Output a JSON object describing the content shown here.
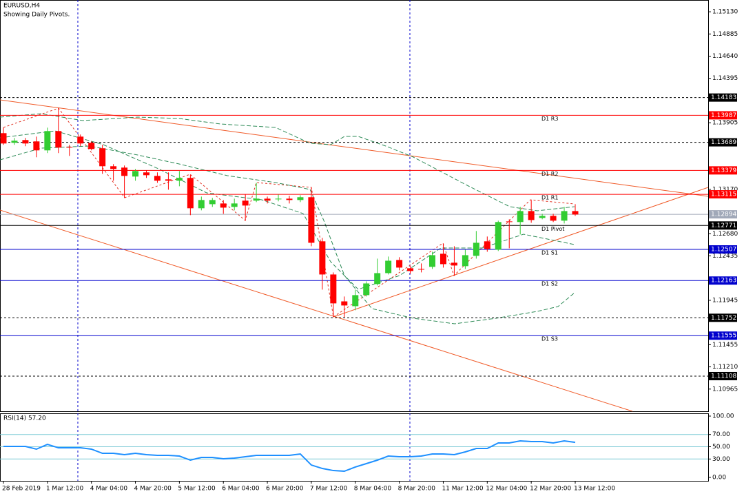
{
  "chart_data": [
    {
      "type": "candlestick",
      "title": "EURUSD,H4",
      "subtitle": "Showing Daily Pivots.",
      "categories": [
        "28 Feb 2019",
        null,
        null,
        null,
        "1 Mar 12:00",
        null,
        null,
        null,
        "4 Mar 04:00",
        null,
        null,
        null,
        "4 Mar 20:00",
        null,
        null,
        null,
        "5 Mar 12:00",
        null,
        null,
        null,
        "6 Mar 04:00",
        null,
        null,
        null,
        "6 Mar 20:00",
        null,
        null,
        null,
        "7 Mar 12:00",
        null,
        null,
        null,
        "8 Mar 04:00",
        null,
        null,
        null,
        "8 Mar 20:00",
        null,
        null,
        null,
        "11 Mar 12:00",
        null,
        null,
        null,
        "12 Mar 04:00",
        null,
        null,
        null,
        "12 Mar 20:00",
        null,
        null,
        null,
        "13 Mar 12:00"
      ],
      "open": [
        1.1379,
        1.13684,
        1.13714,
        1.13699,
        1.136,
        1.13813,
        1.13638,
        1.13752,
        1.13684,
        1.13623,
        1.13425,
        1.1341,
        1.13311,
        1.13357,
        1.13318,
        1.1328,
        1.13265,
        1.13296,
        1.12961,
        1.13006,
        1.13014,
        1.12976,
        1.13045,
        1.13045,
        1.13067,
        1.1306,
        1.13067,
        1.13052,
        1.13083,
        1.12596,
        1.1223,
        1.11933,
        1.1188,
        1.12002,
        1.12124,
        1.12245,
        1.1239,
        1.12299,
        1.12291,
        1.12314,
        1.12459,
        1.1236,
        1.12322,
        1.12436,
        1.12596,
        1.12504,
        1.12816,
        1.12809,
        1.1293,
        1.12854,
        1.12877,
        1.12824,
        1.1293
      ],
      "high": [
        1.13851,
        1.13737,
        1.13737,
        1.13752,
        1.13851,
        1.14064,
        1.13661,
        1.13775,
        1.13699,
        1.13661,
        1.13448,
        1.13433,
        1.13395,
        1.13379,
        1.13357,
        1.13357,
        1.13372,
        1.13334,
        1.1309,
        1.13075,
        1.13052,
        1.13067,
        1.13113,
        1.13242,
        1.1309,
        1.13113,
        1.13098,
        1.13105,
        1.13189,
        1.12634,
        1.12253,
        1.11987,
        1.12063,
        1.12154,
        1.12405,
        1.12428,
        1.12421,
        1.12322,
        1.12352,
        1.12481,
        1.12573,
        1.12542,
        1.12504,
        1.1271,
        1.12649,
        1.12824,
        1.12839,
        1.12976,
        1.13052,
        1.129,
        1.129,
        1.12976,
        1.13006
      ],
      "low": [
        1.13661,
        1.13661,
        1.13646,
        1.13524,
        1.1357,
        1.1357,
        1.13539,
        1.13646,
        1.136,
        1.13341,
        1.13265,
        1.13075,
        1.13265,
        1.13296,
        1.13242,
        1.13166,
        1.13204,
        1.12885,
        1.12938,
        1.12976,
        1.129,
        1.12938,
        1.12824,
        1.13029,
        1.13014,
        1.13037,
        1.13014,
        1.13029,
        1.12542,
        1.12063,
        1.11758,
        1.11758,
        1.11835,
        1.11987,
        1.12109,
        1.1223,
        1.12276,
        1.12238,
        1.12253,
        1.12291,
        1.12306,
        1.12215,
        1.12291,
        1.12405,
        1.12481,
        1.12489,
        1.12519,
        1.12672,
        1.12801,
        1.12839,
        1.12809,
        1.12793,
        1.12877
      ],
      "close": [
        1.13676,
        1.13707,
        1.13676,
        1.136,
        1.13813,
        1.13631,
        1.13631,
        1.13676,
        1.13615,
        1.13425,
        1.13395,
        1.13318,
        1.13372,
        1.13326,
        1.13265,
        1.13265,
        1.13296,
        1.12961,
        1.13052,
        1.13052,
        1.12968,
        1.13014,
        1.12991,
        1.13067,
        1.13045,
        1.13067,
        1.13052,
        1.13083,
        1.1258,
        1.1223,
        1.11911,
        1.11888,
        1.12002,
        1.12131,
        1.12245,
        1.12382,
        1.12306,
        1.12268,
        1.12284,
        1.12443,
        1.12344,
        1.12329,
        1.12443,
        1.1258,
        1.12512,
        1.12809,
        1.12809,
        1.1293,
        1.12831,
        1.12877,
        1.12824,
        1.1293,
        1.12892
      ],
      "up_color": "#32cd32",
      "down_color": "#ff0000",
      "ylim": [
        1.1072,
        1.1526
      ],
      "yticks": [
        {
          "value": 1.1513,
          "label": "1.15130"
        },
        1.14885,
        {
          "value": 1.1464,
          "label": "1.14640"
        },
        1.14395,
        1.13905,
        {
          "value": 1.1317,
          "label": "1.13170"
        },
        {
          "value": 1.1268,
          "label": "1.12680"
        },
        1.12435,
        1.11945,
        1.11455,
        {
          "value": 1.1121,
          "label": "1.11210"
        },
        1.10965
      ],
      "levels": [
        {
          "value": 1.14183,
          "color": "#000000",
          "style": "dashed"
        },
        {
          "value": 1.13987,
          "label": "D1 R3",
          "color": "#ff0000",
          "style": "solid"
        },
        {
          "value": 1.13689,
          "color": "#000000",
          "style": "dashed"
        },
        {
          "value": 1.13379,
          "label": "D1 R2",
          "color": "#ff0000",
          "style": "solid"
        },
        {
          "value": 1.13115,
          "label": "D1 R1",
          "color": "#ff0000",
          "style": "solid"
        },
        {
          "value": 1.12894,
          "color": "#a0a8b8",
          "style": "solid"
        },
        {
          "value": 1.12771,
          "label": "D1 Pivot",
          "color": "#000000",
          "style": "solid"
        },
        {
          "value": 1.12507,
          "label": "D1 S1",
          "color": "#0000cd",
          "style": "solid"
        },
        {
          "value": 1.12163,
          "label": "D1 S2",
          "color": "#0000cd",
          "style": "solid"
        },
        {
          "value": 1.11752,
          "color": "#000000",
          "style": "dashed"
        },
        {
          "value": 1.11555,
          "label": "D1 S3",
          "color": "#0000cd",
          "style": "solid"
        },
        {
          "value": 1.11108,
          "color": "#000000",
          "style": "dashed"
        }
      ]
    },
    {
      "type": "line",
      "title": "RSI(14) 57.20",
      "color": "#1e90ff",
      "values": [
        50.6,
        50.6,
        50.6,
        46.1,
        53.9,
        48.3,
        48.3,
        48.3,
        46.1,
        39.3,
        39.3,
        37.1,
        39.3,
        37.1,
        36.0,
        36.0,
        34.8,
        28.1,
        32.6,
        32.6,
        30.3,
        31.5,
        33.7,
        36.0,
        36.0,
        36.0,
        36.0,
        38.2,
        20.2,
        14.6,
        11.2,
        10.1,
        16.9,
        22.5,
        28.1,
        34.8,
        33.7,
        33.7,
        34.8,
        38.2,
        38.2,
        37.1,
        41.6,
        47.2,
        47.2,
        56.2,
        56.2,
        59.6,
        58.4,
        58.4,
        56.2,
        59.6,
        57.2
      ],
      "ylim": [
        -5.6,
        104.5
      ],
      "yticks": [
        {
          "value": 100,
          "label": "100.00"
        },
        {
          "value": 70,
          "label": "70.00"
        },
        {
          "value": 50,
          "label": "50.00"
        },
        {
          "value": 30,
          "label": "30.00"
        },
        {
          "value": 0,
          "label": "0.00"
        }
      ],
      "levels": [
        70,
        50,
        30
      ],
      "level_color": "#7ecbd6"
    }
  ]
}
